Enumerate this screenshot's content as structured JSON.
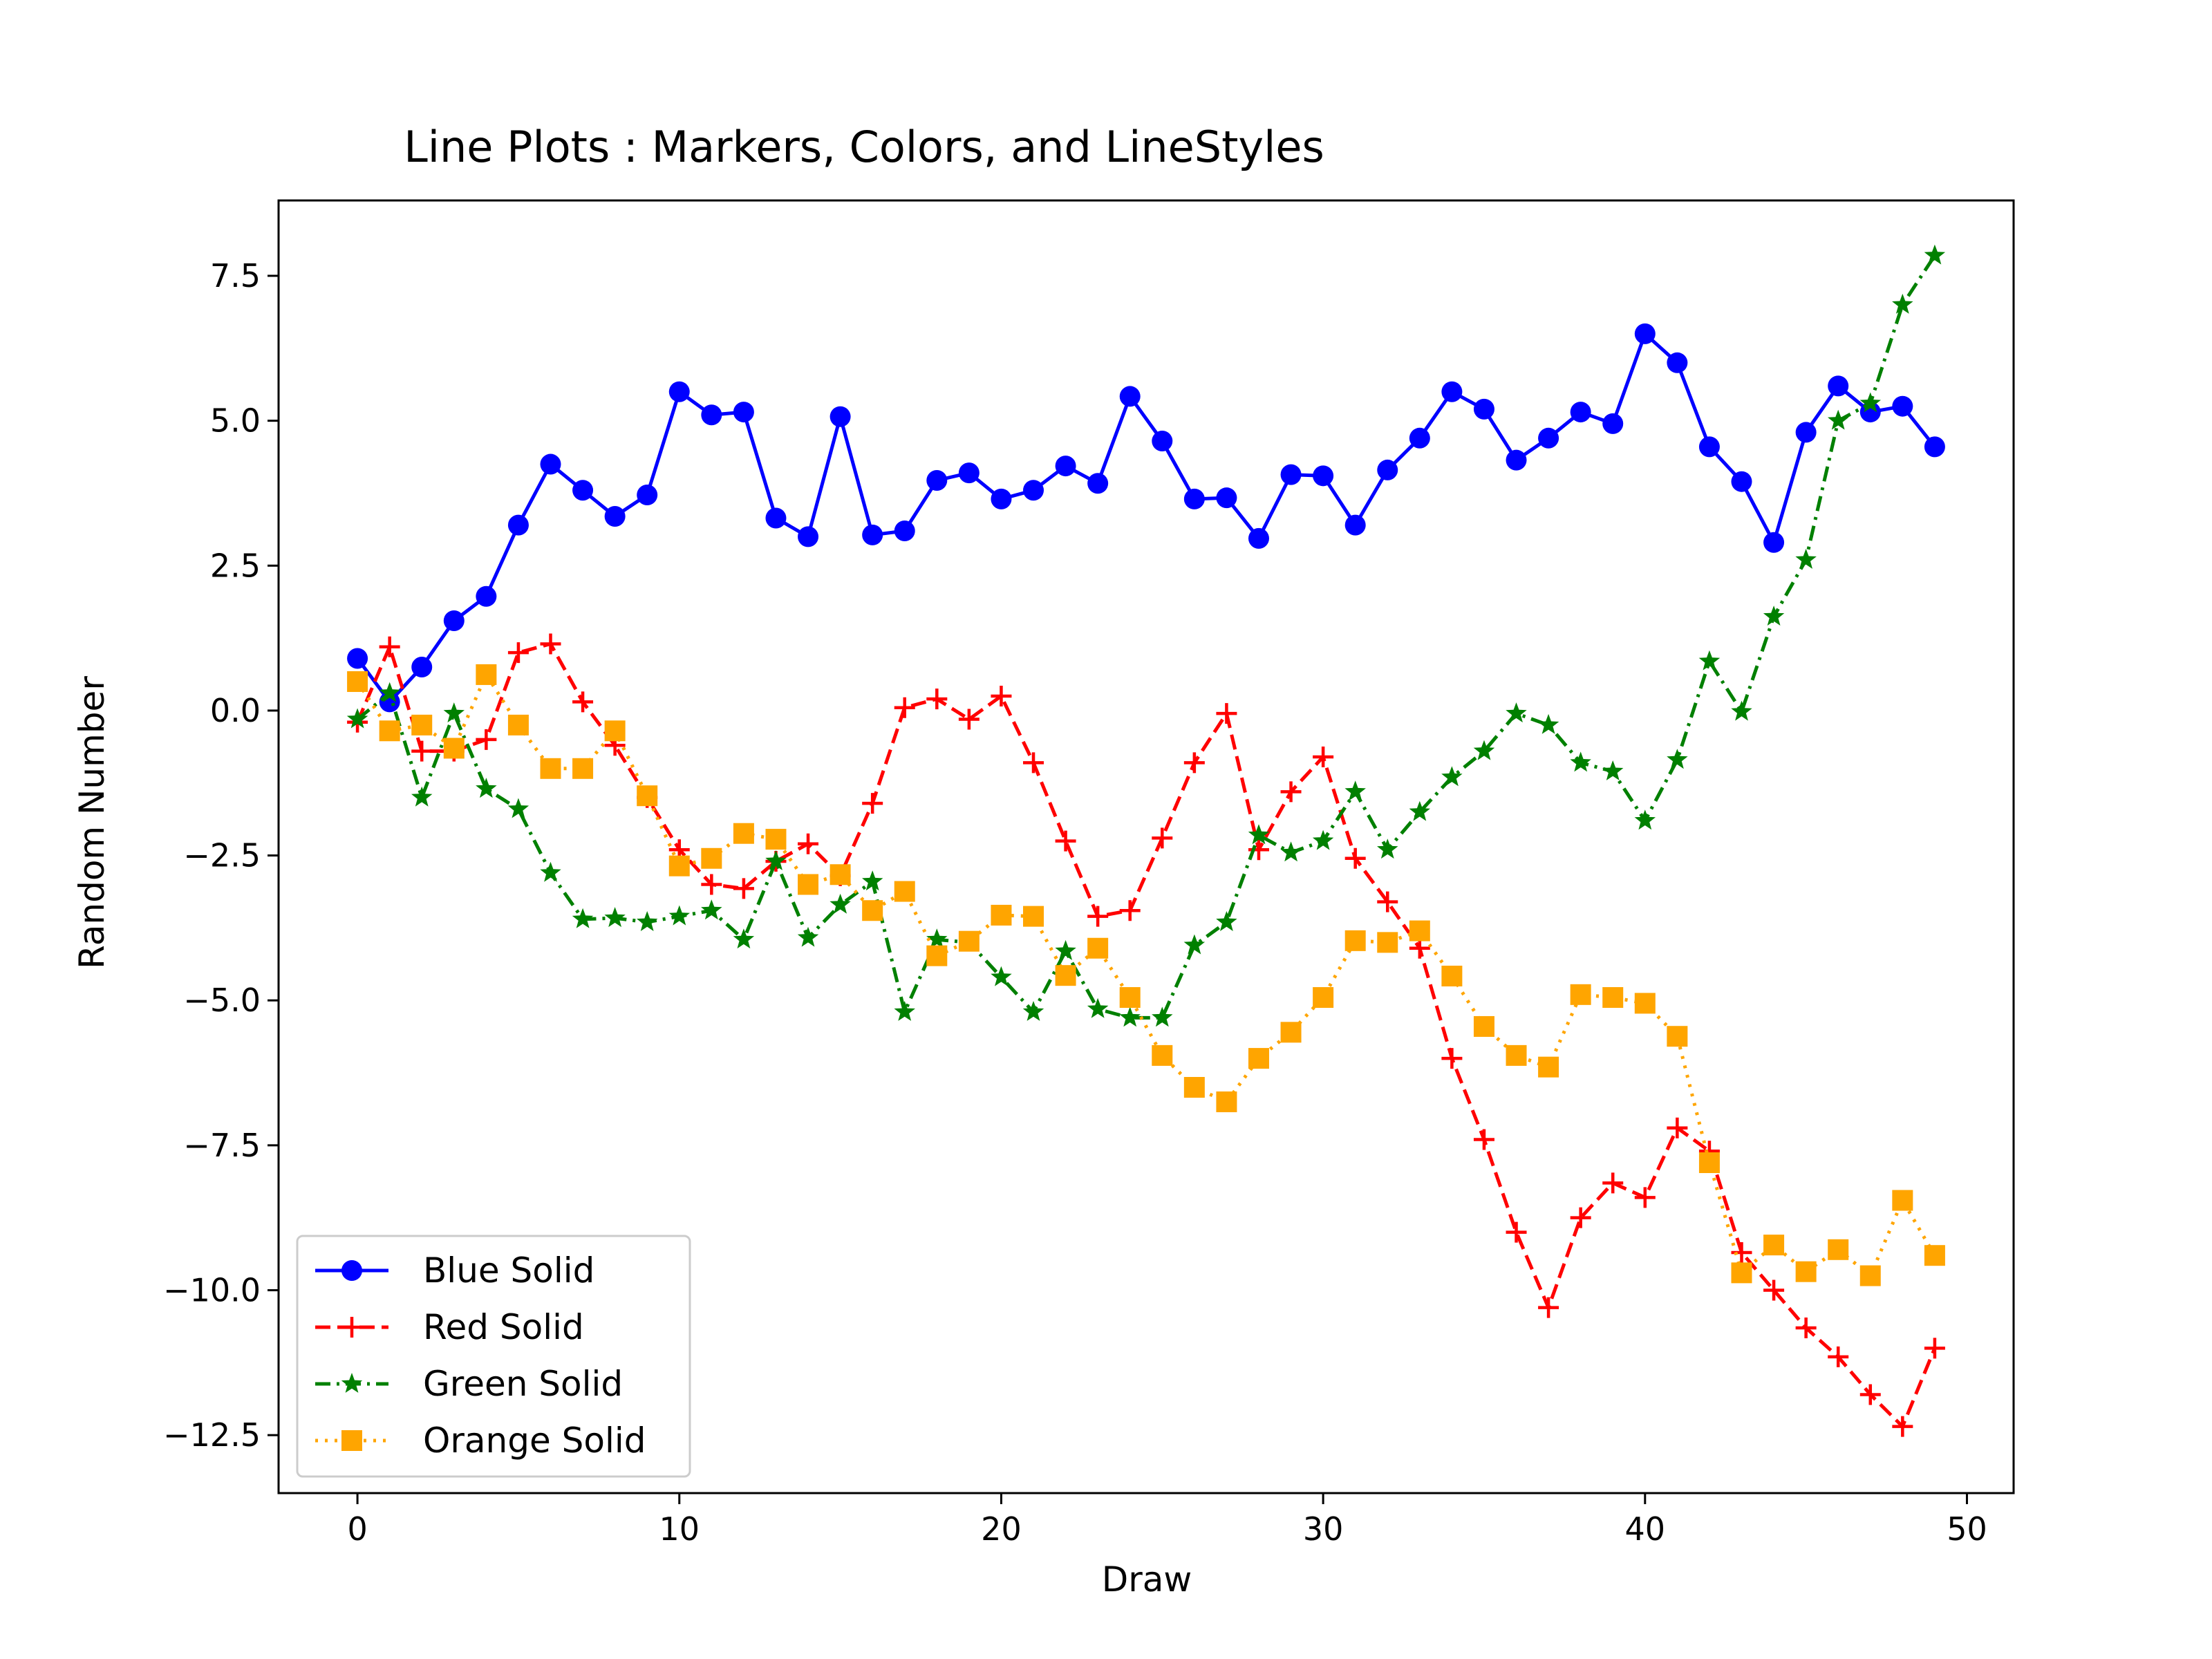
{
  "chart_data": {
    "type": "line",
    "title": "Line Plots : Markers, Colors, and LineStyles",
    "xlabel": "Draw",
    "ylabel": "Random Number",
    "xlim": [
      -2.45,
      51.45
    ],
    "ylim": [
      -13.5,
      8.8
    ],
    "xticks": [
      0,
      10,
      20,
      30,
      40,
      50
    ],
    "xtick_labels": [
      "0",
      "10",
      "20",
      "30",
      "40",
      "50"
    ],
    "yticks": [
      7.5,
      5.0,
      2.5,
      0.0,
      -2.5,
      -5.0,
      -7.5,
      -10.0,
      -12.5
    ],
    "ytick_labels": [
      "7.5",
      "5.0",
      "2.5",
      "0.0",
      "−2.5",
      "−5.0",
      "−7.5",
      "−10.0",
      "−12.5"
    ],
    "grid": false,
    "legend_position": "lower-left",
    "series": [
      {
        "name": "Blue Solid",
        "color": "#0000ff",
        "line_style": "solid",
        "marker": "circle",
        "values": [
          0.9,
          0.15,
          0.75,
          1.55,
          1.97,
          3.2,
          4.25,
          3.8,
          3.35,
          3.72,
          5.5,
          5.1,
          5.15,
          3.32,
          3.0,
          5.07,
          3.03,
          3.1,
          3.97,
          4.1,
          3.65,
          3.8,
          4.22,
          3.92,
          5.42,
          4.65,
          3.65,
          3.67,
          2.97,
          4.07,
          4.05,
          3.2,
          4.15,
          4.7,
          5.5,
          5.2,
          4.32,
          4.7,
          5.15,
          4.95,
          6.5,
          6.0,
          4.55,
          3.95,
          2.9,
          4.8,
          5.6,
          5.15,
          5.25,
          4.55
        ]
      },
      {
        "name": "Red Solid",
        "color": "#ff0000",
        "line_style": "dashed",
        "marker": "plus",
        "values": [
          -0.2,
          1.1,
          -0.7,
          -0.7,
          -0.5,
          1.0,
          1.15,
          0.15,
          -0.6,
          -1.5,
          -2.4,
          -3.0,
          -3.07,
          -2.6,
          -2.3,
          -2.85,
          -1.6,
          0.05,
          0.2,
          -0.15,
          0.25,
          -0.9,
          -2.25,
          -3.55,
          -3.45,
          -2.2,
          -0.9,
          -0.05,
          -2.4,
          -1.4,
          -0.8,
          -2.55,
          -3.3,
          -4.1,
          -6.0,
          -7.4,
          -9.0,
          -10.3,
          -8.75,
          -8.15,
          -8.4,
          -7.2,
          -7.6,
          -9.35,
          -10.0,
          -10.65,
          -11.15,
          -11.8,
          -12.35,
          -11.0
        ]
      },
      {
        "name": "Green Solid",
        "color": "#008000",
        "line_style": "dashdot",
        "marker": "star",
        "values": [
          -0.15,
          0.3,
          -1.5,
          -0.05,
          -1.35,
          -1.7,
          -2.8,
          -3.6,
          -3.58,
          -3.65,
          -3.55,
          -3.45,
          -3.95,
          -2.6,
          -3.92,
          -3.35,
          -2.95,
          -5.2,
          -3.95,
          -4.0,
          -4.6,
          -5.2,
          -4.15,
          -5.15,
          -5.3,
          -5.3,
          -4.05,
          -3.65,
          -2.15,
          -2.45,
          -2.25,
          -1.4,
          -2.4,
          -1.75,
          -1.15,
          -0.7,
          -0.05,
          -0.25,
          -0.9,
          -1.05,
          -1.9,
          -0.85,
          0.85,
          -0.02,
          1.62,
          2.6,
          5.0,
          5.3,
          7.0,
          7.85
        ]
      },
      {
        "name": "Orange Solid",
        "color": "#ffa500",
        "line_style": "dotted",
        "marker": "square",
        "values": [
          0.5,
          -0.35,
          -0.25,
          -0.65,
          0.62,
          -0.25,
          -1.0,
          -1.0,
          -0.35,
          -1.47,
          -2.68,
          -2.55,
          -2.12,
          -2.22,
          -3.0,
          -2.83,
          -3.45,
          -3.12,
          -4.23,
          -3.98,
          -3.53,
          -3.55,
          -4.57,
          -4.1,
          -4.95,
          -5.95,
          -6.5,
          -6.75,
          -6.0,
          -5.55,
          -4.95,
          -3.97,
          -4.0,
          -3.8,
          -4.58,
          -5.45,
          -5.95,
          -6.15,
          -4.9,
          -4.95,
          -5.05,
          -5.62,
          -7.8,
          -9.7,
          -9.22,
          -9.68,
          -9.3,
          -9.75,
          -8.45,
          -9.4
        ]
      }
    ]
  }
}
